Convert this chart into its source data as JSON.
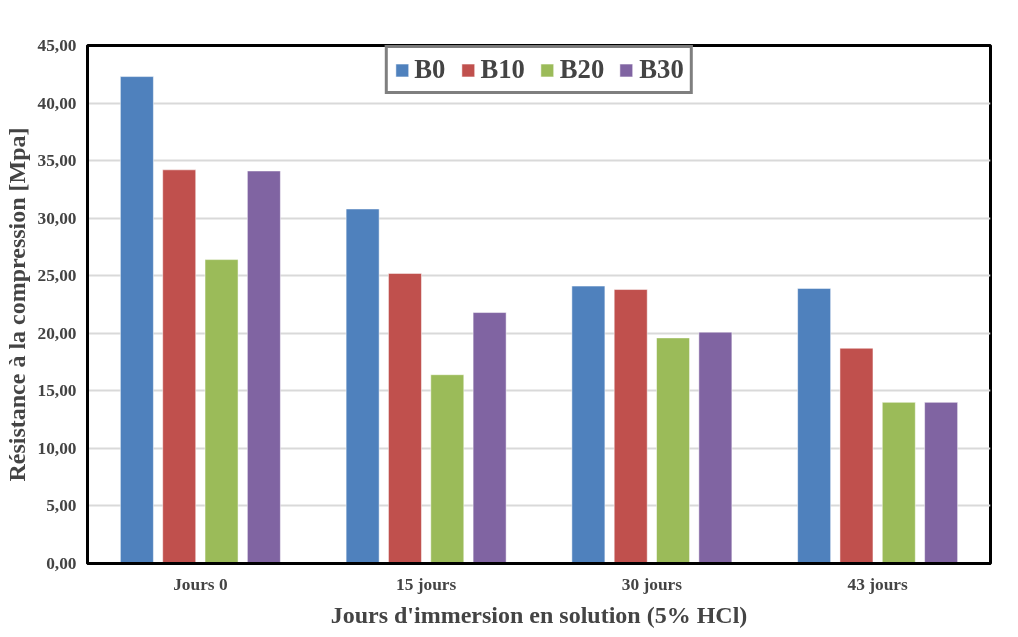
{
  "chart_data": {
    "type": "bar",
    "xlabel": "Jours d'immersion en solution (5% HCl)",
    "ylabel": "Résistance à la compression [Mpa]",
    "categories": [
      "Jours 0",
      "15 jours",
      "30 jours",
      "43 jours"
    ],
    "series": [
      {
        "name": "B0",
        "color": "#4f81bd",
        "values": [
          42.3,
          30.8,
          24.1,
          23.9
        ]
      },
      {
        "name": "B10",
        "color": "#c0504d",
        "values": [
          34.2,
          25.2,
          23.8,
          18.7
        ]
      },
      {
        "name": "B20",
        "color": "#9bbb59",
        "values": [
          26.4,
          16.4,
          19.6,
          14.0
        ]
      },
      {
        "name": "B30",
        "color": "#8064a2",
        "values": [
          34.1,
          21.8,
          20.1,
          14.0
        ]
      }
    ],
    "ylim": [
      0,
      45
    ],
    "yticks": [
      {
        "value": 0,
        "label": "0,00"
      },
      {
        "value": 5,
        "label": "5,00"
      },
      {
        "value": 10,
        "label": "10,00"
      },
      {
        "value": 15,
        "label": "15,00"
      },
      {
        "value": 20,
        "label": "20,00"
      },
      {
        "value": 25,
        "label": "25,00"
      },
      {
        "value": 30,
        "label": "30,00"
      },
      {
        "value": 35,
        "label": "35,00"
      },
      {
        "value": 40,
        "label": "40,00"
      },
      {
        "value": 45,
        "label": "45,00"
      }
    ],
    "grid": "y",
    "legend": "top"
  }
}
